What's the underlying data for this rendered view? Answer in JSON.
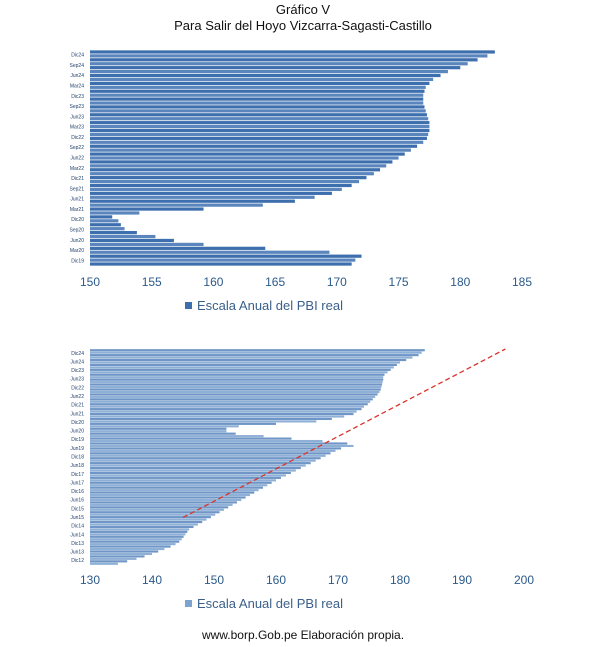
{
  "title": "Gráfico V",
  "subtitle": "Para Salir del Hoyo Vizcarra-Sagasti-Castillo",
  "source": "www.borp.Gob.pe Elaboración propia.",
  "colors": {
    "bar": "#3d6fae",
    "bar_light": "#7fa3cf",
    "trend": "#d9342b",
    "text": "#2b5a8a"
  },
  "chart_data": [
    {
      "type": "bar",
      "orientation": "horizontal",
      "legend": "Escala Anual del PBI real",
      "legend_position": "bottom",
      "xlim": [
        150,
        185
      ],
      "xticks": [
        150,
        155,
        160,
        165,
        170,
        175,
        180,
        185
      ],
      "grid": false,
      "category_labels": [
        "Dic24",
        "Sep24",
        "Jun24",
        "Mar24",
        "Dic23",
        "Sep23",
        "Jun23",
        "Mar23",
        "Dic22",
        "Sep22",
        "Jun22",
        "Mar22",
        "Dic21",
        "Sep21",
        "Jun21",
        "Mar21",
        "Dic20",
        "Sep20",
        "Jun20",
        "Mar20",
        "Dic19"
      ],
      "values": [
        182.8,
        182.2,
        181.4,
        180.6,
        180.0,
        179.0,
        178.4,
        177.8,
        177.5,
        177.2,
        177.1,
        177.0,
        177.0,
        177.0,
        177.1,
        177.2,
        177.3,
        177.4,
        177.5,
        177.5,
        177.5,
        177.4,
        177.3,
        177.0,
        176.5,
        176.0,
        175.5,
        175.0,
        174.5,
        174.0,
        173.5,
        173.0,
        172.4,
        171.8,
        171.2,
        170.4,
        169.6,
        168.2,
        166.6,
        164.0,
        159.2,
        154.0,
        151.8,
        152.3,
        152.5,
        152.8,
        153.8,
        155.3,
        156.8,
        159.2,
        164.2,
        169.4,
        172.0,
        171.5,
        171.2
      ]
    },
    {
      "type": "bar",
      "orientation": "horizontal",
      "legend": "Escala Anual del PBI real",
      "legend_position": "bottom",
      "xlim": [
        130,
        200
      ],
      "xticks": [
        130,
        140,
        150,
        160,
        170,
        180,
        190,
        200
      ],
      "grid": false,
      "trend_line": {
        "style": "dashed",
        "x_start": 145,
        "x_end": 197
      },
      "category_labels": [
        "Dic24",
        "Jun24",
        "Dic23",
        "Jun23",
        "Dic22",
        "Jun22",
        "Dic21",
        "Jun21",
        "Dic20",
        "Jun20",
        "Dic19",
        "Jun19",
        "Dic18",
        "Jun18",
        "Dic17",
        "Jun17",
        "Dic16",
        "Jun16",
        "Dic15",
        "Jun15",
        "Dic14",
        "Jun14",
        "Dic13",
        "Jun13",
        "Dic12"
      ],
      "values": [
        184.0,
        183.5,
        183.0,
        182.0,
        181.0,
        180.0,
        179.5,
        179.0,
        178.5,
        178.0,
        177.5,
        177.3,
        177.3,
        177.2,
        177.1,
        177.0,
        176.9,
        176.7,
        176.4,
        176.0,
        175.6,
        175.2,
        174.8,
        174.2,
        173.8,
        173.0,
        172.5,
        171.0,
        169.0,
        166.5,
        160.0,
        154.0,
        152.0,
        152.0,
        153.5,
        158.0,
        162.5,
        167.5,
        171.5,
        172.5,
        170.5,
        169.6,
        168.8,
        168.0,
        167.2,
        166.4,
        165.6,
        164.8,
        164.0,
        163.2,
        162.4,
        161.6,
        160.8,
        160.0,
        159.3,
        158.6,
        157.9,
        157.2,
        156.5,
        155.8,
        155.1,
        154.4,
        153.7,
        153.0,
        152.3,
        151.6,
        150.9,
        150.2,
        149.5,
        148.8,
        148.1,
        147.4,
        146.7,
        146.0,
        145.7,
        145.4,
        145.1,
        144.8,
        144.4,
        143.8,
        143.0,
        142.0,
        141.0,
        140.0,
        138.8,
        137.5,
        136.0,
        134.5
      ]
    }
  ]
}
